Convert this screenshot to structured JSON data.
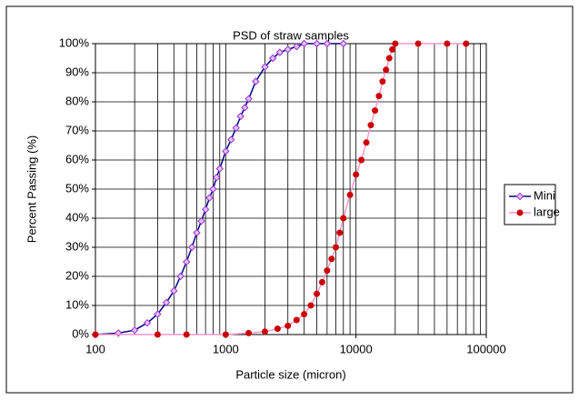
{
  "chart_data": {
    "type": "scatter-line",
    "title": "PSD of straw samples",
    "x_label": "Particle size (micron)",
    "y_label": "Percent Passing (%)",
    "xscale": "log",
    "xlim": [
      100,
      100000
    ],
    "xticks": [
      100,
      1000,
      10000,
      100000
    ],
    "xminorticks": [
      200,
      300,
      400,
      500,
      600,
      700,
      800,
      900,
      2000,
      3000,
      4000,
      5000,
      6000,
      7000,
      8000,
      9000,
      20000,
      30000,
      40000,
      50000,
      60000,
      70000,
      80000,
      90000
    ],
    "ylim": [
      0,
      100
    ],
    "yticks": [
      {
        "value": 0,
        "label": "0%"
      },
      {
        "value": 10,
        "label": "10%"
      },
      {
        "value": 20,
        "label": "20%"
      },
      {
        "value": 30,
        "label": "30%"
      },
      {
        "value": 40,
        "label": "40%"
      },
      {
        "value": 50,
        "label": "50%"
      },
      {
        "value": 60,
        "label": "60%"
      },
      {
        "value": 70,
        "label": "70%"
      },
      {
        "value": 80,
        "label": "80%"
      },
      {
        "value": 90,
        "label": "90%"
      },
      {
        "value": 100,
        "label": "100%"
      }
    ],
    "grid": true,
    "legend": "right",
    "series": [
      {
        "name": "Mini",
        "color": "#9933cc",
        "line_color": "#000080",
        "marker": "diamond",
        "x": [
          100,
          150,
          200,
          250,
          300,
          350,
          400,
          450,
          500,
          550,
          600,
          650,
          700,
          750,
          800,
          850,
          900,
          1000,
          1100,
          1200,
          1300,
          1400,
          1500,
          1700,
          2000,
          2300,
          2600,
          3000,
          3500,
          4000,
          5000,
          6000,
          8000
        ],
        "values": [
          0,
          0.5,
          1.5,
          4,
          7,
          11,
          15,
          20,
          25,
          30,
          35,
          39,
          43,
          47,
          50,
          54,
          57,
          63,
          67,
          71,
          75,
          78,
          81,
          87,
          92,
          95,
          97,
          98,
          99,
          100,
          100,
          100,
          100
        ]
      },
      {
        "name": "large",
        "color": "#cc0000",
        "line_color": "#ff99cc",
        "marker": "circle",
        "x": [
          100,
          300,
          500,
          1000,
          1500,
          2000,
          2500,
          3000,
          3500,
          4000,
          4500,
          5000,
          5500,
          6000,
          6500,
          7000,
          7500,
          8000,
          9000,
          10000,
          11000,
          12000,
          13000,
          14000,
          15000,
          16000,
          17000,
          18000,
          19000,
          20000,
          30000,
          50000,
          70000
        ],
        "values": [
          0,
          0,
          0,
          0,
          0.5,
          1,
          2,
          3,
          5,
          7,
          10,
          14,
          18,
          22,
          26,
          30,
          35,
          40,
          48,
          55,
          60,
          66,
          72,
          77,
          82,
          87,
          91,
          95,
          98,
          100,
          100,
          100,
          100
        ]
      }
    ]
  }
}
